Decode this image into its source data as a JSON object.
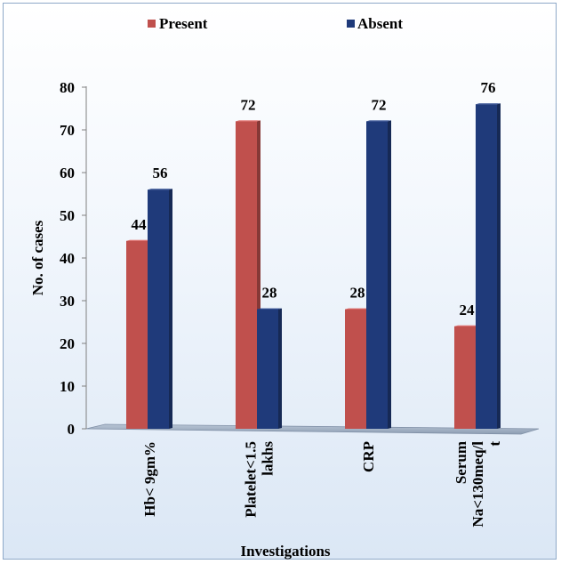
{
  "chart_data": {
    "type": "bar",
    "title": "",
    "xlabel": "Investigations",
    "ylabel": "No. of cases",
    "ylim": [
      0,
      80
    ],
    "yticks": [
      0,
      10,
      20,
      30,
      40,
      50,
      60,
      70,
      80
    ],
    "categories": [
      [
        "Hb< 9gm%"
      ],
      [
        "Platelet<1.5",
        "lakhs"
      ],
      [
        "CRP"
      ],
      [
        "Serum",
        "Na<130meq/l",
        "t"
      ]
    ],
    "series": [
      {
        "name": "Present",
        "values": [
          44,
          72,
          28,
          24
        ],
        "color": "#c0504d"
      },
      {
        "name": "Absent",
        "values": [
          56,
          28,
          72,
          76
        ],
        "color": "#1f3a7a"
      }
    ],
    "legend_position": "top",
    "grid": false,
    "style": "3d-bar"
  }
}
